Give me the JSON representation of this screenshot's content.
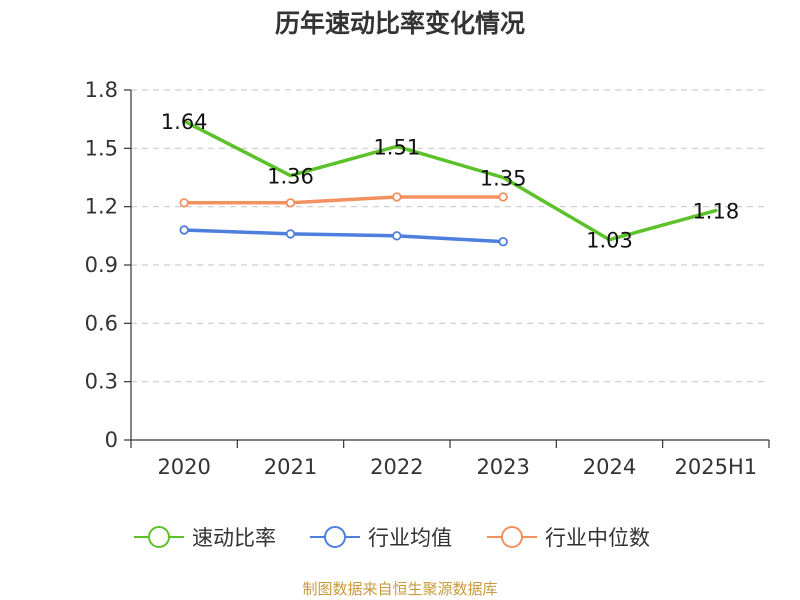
{
  "chart_data": {
    "type": "line",
    "title": "历年速动比率变化情况",
    "categories": [
      "2020",
      "2021",
      "2022",
      "2023",
      "2024",
      "2025H1"
    ],
    "series": [
      {
        "name": "速动比率",
        "color": "#5cc12a",
        "values": [
          1.64,
          1.36,
          1.51,
          1.35,
          1.03,
          1.18
        ],
        "show_labels": true,
        "show_markers": false
      },
      {
        "name": "行业均值",
        "color": "#4f7fdc",
        "values": [
          1.08,
          1.06,
          1.05,
          1.02,
          null,
          null
        ],
        "show_labels": false,
        "show_markers": true
      },
      {
        "name": "行业中位数",
        "color": "#f39060",
        "values": [
          1.22,
          1.22,
          1.25,
          1.25,
          null,
          null
        ],
        "show_labels": false,
        "show_markers": true
      }
    ],
    "data_labels": [
      "1.64",
      "1.36",
      "1.51",
      "1.35",
      "1.03",
      "1.18"
    ],
    "y_ticks": [
      "0",
      "0.3",
      "0.6",
      "0.9",
      "1.2",
      "1.5",
      "1.8"
    ],
    "ylim": [
      0,
      1.8
    ],
    "grid": true,
    "legend_position": "bottom"
  },
  "footer": "制图数据来自恒生聚源数据库"
}
